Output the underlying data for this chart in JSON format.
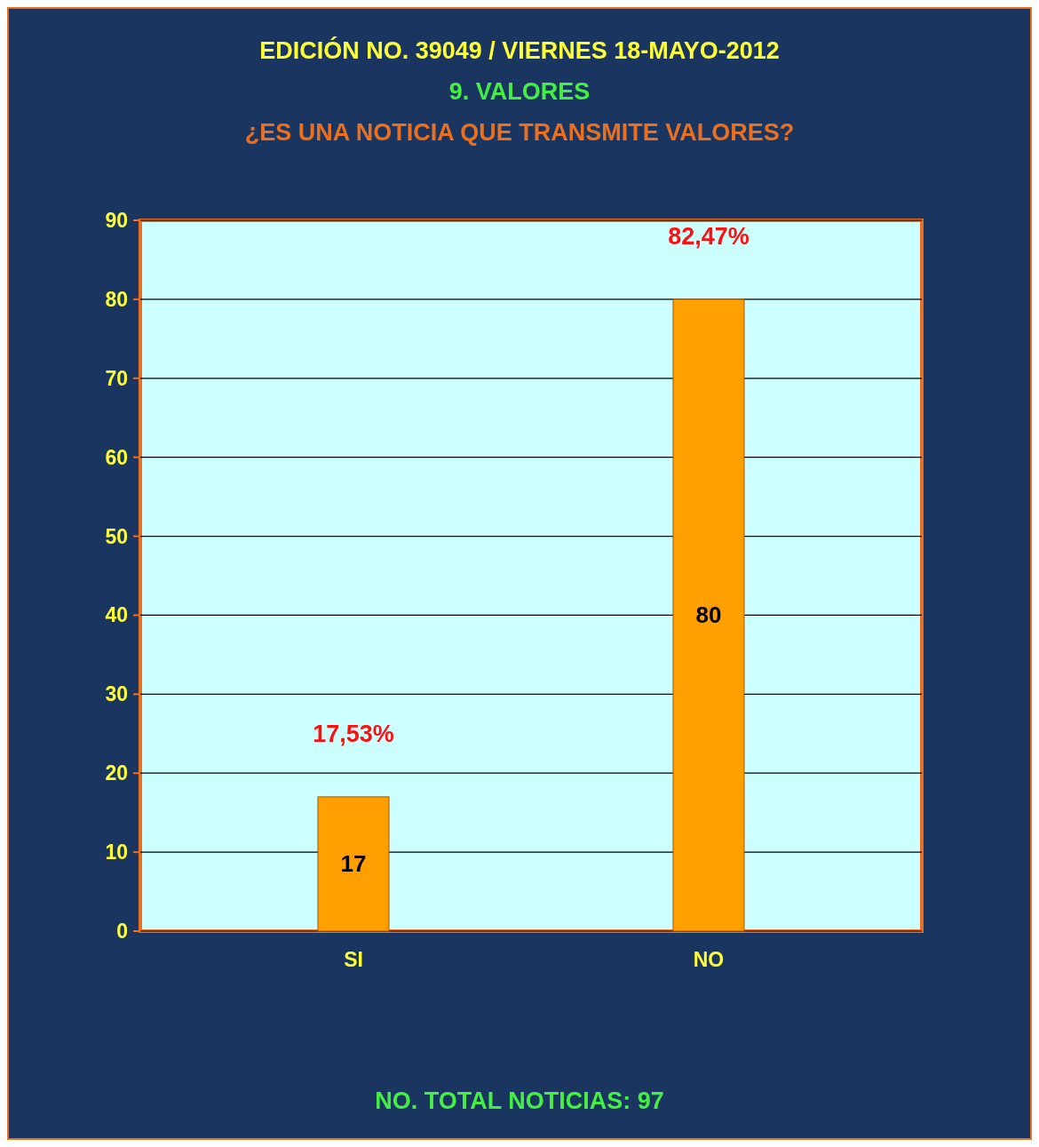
{
  "chart_data": {
    "type": "bar",
    "title": "EDICIÓN NO. 39049 / VIERNES  18-MAYO-2012",
    "subtitle": "9.  VALORES",
    "annotations": [
      "¿ES UNA NOTICIA QUE TRANSMITE VALORES?",
      {
        "text": "17,53%",
        "x": "SI",
        "y": 17
      },
      {
        "text": "82,47%",
        "x": "NO",
        "y": 80
      },
      "NO. TOTAL NOTICIAS:  97"
    ],
    "categories": [
      "SI",
      "NO"
    ],
    "values": [
      17,
      80
    ],
    "color": "#ffa000",
    "ylim": [
      0,
      90
    ],
    "yticks": [
      0,
      10,
      20,
      30,
      40,
      50,
      60,
      70,
      80,
      90
    ],
    "grid": true,
    "data_labels": true
  }
}
